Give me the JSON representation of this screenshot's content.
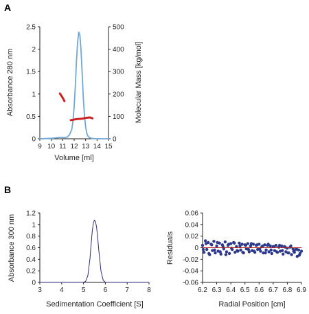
{
  "panels": {
    "a_label": "A",
    "b_label": "B"
  },
  "colors": {
    "trace": "#6fa8d6",
    "mass": "#cc2222",
    "dist": "#2a2a7a",
    "resid_pts": "#2d3a8c",
    "resid_fit": "#b22222",
    "axis": "#222222"
  },
  "chart_data": [
    {
      "id": "sec-mals",
      "type": "line",
      "title": "",
      "xlabel": "Volume [ml]",
      "ylabel": "Absorbance 280 nm",
      "y2label": "Molecular Mass [kg/mol]",
      "xlim": [
        9,
        15
      ],
      "ylim": [
        0,
        2.5
      ],
      "y2lim": [
        0,
        500
      ],
      "xticks": [
        "9",
        "10",
        "11",
        "12",
        "13",
        "14",
        "15"
      ],
      "yticks": [
        "0",
        "0.5",
        "1",
        "1.5",
        "2",
        "2.5"
      ],
      "y2ticks": [
        "0",
        "100",
        "200",
        "300",
        "400",
        "500"
      ],
      "series": [
        {
          "axis": "left",
          "x": [
            9.0,
            9.5,
            10.0,
            10.4,
            10.7,
            11.0,
            11.2,
            11.4,
            11.6,
            11.8,
            11.9,
            12.0,
            12.1,
            12.2,
            12.3,
            12.4,
            12.5,
            12.6,
            12.7,
            12.8,
            12.9,
            13.0,
            13.1,
            13.2,
            13.35,
            13.5,
            13.7,
            14.0,
            14.5,
            15.0
          ],
          "y": [
            0.0,
            0.005,
            0.01,
            0.02,
            0.03,
            0.03,
            0.025,
            0.04,
            0.09,
            0.22,
            0.4,
            0.72,
            1.18,
            1.72,
            2.15,
            2.38,
            2.32,
            1.98,
            1.45,
            0.92,
            0.52,
            0.27,
            0.13,
            0.06,
            0.025,
            0.01,
            0.005,
            0.0,
            0.0,
            0.0
          ]
        },
        {
          "axis": "right",
          "x": [
            10.75,
            10.85,
            10.95,
            11.05,
            11.15
          ],
          "y": [
            202,
            195,
            187,
            178,
            168
          ]
        },
        {
          "axis": "right",
          "x": [
            11.7,
            11.9,
            12.1,
            12.3,
            12.5,
            12.7,
            12.9,
            13.1,
            13.3,
            13.5,
            13.6
          ],
          "y": [
            83,
            85,
            87,
            88,
            89,
            90,
            92,
            94,
            95,
            94,
            91
          ]
        }
      ]
    },
    {
      "id": "sedimentation",
      "type": "line",
      "title": "",
      "xlabel": "Sedimentation Coefficient [S]",
      "ylabel": "Absorbance 300 nm",
      "xlim": [
        3,
        8
      ],
      "ylim": [
        0,
        1.2
      ],
      "xticks": [
        "3",
        "4",
        "5",
        "6",
        "7",
        "8"
      ],
      "yticks": [
        "0",
        "0.2",
        "0.4",
        "0.6",
        "0.8",
        "1",
        "1.2"
      ],
      "series": [
        {
          "x": [
            3.0,
            4.5,
            5.0,
            5.1,
            5.2,
            5.3,
            5.35,
            5.4,
            5.45,
            5.5,
            5.55,
            5.6,
            5.65,
            5.7,
            5.8,
            5.9,
            6.0,
            7.0,
            8.0
          ],
          "y": [
            0.0,
            0.0,
            0.0,
            0.02,
            0.12,
            0.42,
            0.66,
            0.88,
            1.02,
            1.08,
            1.05,
            0.95,
            0.77,
            0.55,
            0.2,
            0.04,
            0.0,
            0.0,
            0.0
          ]
        }
      ]
    },
    {
      "id": "residuals",
      "type": "scatter",
      "title": "",
      "xlabel": "Radial Position [cm]",
      "ylabel": "Residuals",
      "xlim": [
        6.2,
        6.9
      ],
      "ylim": [
        -0.06,
        0.06
      ],
      "xticks": [
        "6.2",
        "6.3",
        "6.4",
        "6.5",
        "6.6",
        "6.7",
        "6.8",
        "6.9"
      ],
      "yticks": [
        "-0.06",
        "-0.04",
        "-0.02",
        "0",
        "0.02",
        "0.04",
        "0.06"
      ],
      "series": [
        {
          "x": [
            6.2,
            6.21,
            6.22,
            6.23,
            6.24,
            6.25,
            6.26,
            6.27,
            6.28,
            6.29,
            6.3,
            6.31,
            6.32,
            6.33,
            6.34,
            6.35,
            6.36,
            6.37,
            6.38,
            6.39,
            6.4,
            6.41,
            6.42,
            6.43,
            6.44,
            6.45,
            6.46,
            6.47,
            6.48,
            6.49,
            6.5,
            6.51,
            6.52,
            6.53,
            6.54,
            6.55,
            6.56,
            6.57,
            6.58,
            6.59,
            6.6,
            6.61,
            6.62,
            6.63,
            6.64,
            6.65,
            6.66,
            6.67,
            6.68,
            6.69,
            6.7,
            6.71,
            6.72,
            6.73,
            6.74,
            6.75,
            6.76,
            6.77,
            6.78,
            6.79,
            6.8,
            6.81,
            6.82,
            6.83,
            6.84,
            6.85,
            6.86,
            6.87,
            6.88,
            6.89,
            6.9,
            6.205,
            6.225,
            6.245,
            6.265,
            6.285,
            6.305,
            6.325,
            6.345,
            6.365,
            6.385,
            6.405,
            6.425,
            6.445,
            6.465,
            6.485,
            6.505,
            6.525,
            6.545,
            6.565,
            6.585,
            6.605,
            6.625,
            6.645,
            6.665,
            6.685,
            6.705,
            6.725,
            6.745,
            6.765,
            6.785,
            6.805,
            6.825,
            6.845,
            6.865,
            6.885
          ],
          "y": [
            0.004,
            -0.008,
            0.012,
            -0.003,
            0.009,
            -0.012,
            0.006,
            -0.005,
            0.011,
            -0.009,
            0.003,
            -0.006,
            0.008,
            -0.011,
            0.005,
            -0.002,
            0.01,
            -0.007,
            0.004,
            -0.01,
            0.007,
            -0.003,
            0.009,
            -0.008,
            0.002,
            -0.006,
            0.008,
            -0.004,
            0.006,
            -0.009,
            0.005,
            -0.002,
            0.007,
            -0.007,
            0.003,
            -0.005,
            0.006,
            -0.008,
            0.004,
            -0.003,
            0.006,
            -0.006,
            0.002,
            -0.009,
            0.005,
            -0.004,
            0.004,
            -0.007,
            0.003,
            -0.01,
            0.002,
            -0.005,
            0.004,
            -0.008,
            0.001,
            -0.006,
            0.003,
            -0.011,
            0.002,
            -0.007,
            -0.001,
            -0.009,
            0.001,
            -0.012,
            -0.002,
            -0.008,
            -0.003,
            -0.015,
            -0.004,
            -0.01,
            -0.006,
            -0.003,
            0.007,
            -0.01,
            0.005,
            -0.004,
            0.009,
            -0.007,
            0.002,
            -0.012,
            0.006,
            -0.001,
            0.008,
            -0.005,
            0.003,
            -0.008,
            0.004,
            -0.003,
            0.007,
            -0.006,
            0.005,
            -0.002,
            0.003,
            -0.009,
            0.006,
            -0.004,
            0.002,
            -0.007,
            0.004,
            -0.005,
            0.001,
            -0.009,
            0.003,
            -0.006,
            -0.002,
            -0.013
          ]
        },
        {
          "type": "line",
          "x": [
            6.2,
            6.9
          ],
          "y": [
            0.0,
            0.0
          ]
        }
      ]
    }
  ]
}
